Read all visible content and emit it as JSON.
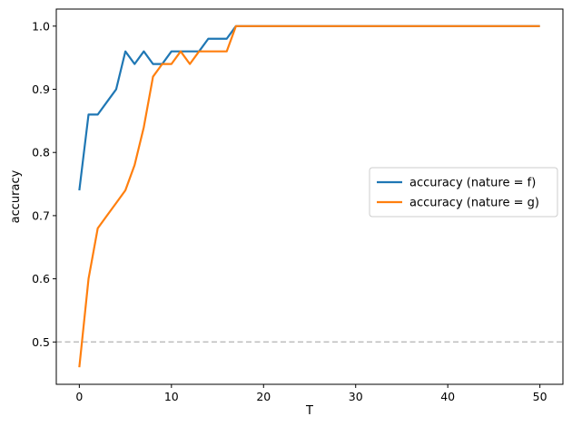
{
  "chart_data": {
    "type": "line",
    "title": "",
    "xlabel": "T",
    "ylabel": "accuracy",
    "xlim": [
      -2.5,
      52.5
    ],
    "ylim": [
      0.433,
      1.027
    ],
    "xticks": [
      0,
      10,
      20,
      30,
      40,
      50
    ],
    "yticks": [
      0.5,
      0.6,
      0.7,
      0.8,
      0.9,
      1.0
    ],
    "xtick_labels": [
      "0",
      "10",
      "20",
      "30",
      "40",
      "50"
    ],
    "ytick_labels": [
      "0.5",
      "0.6",
      "0.7",
      "0.8",
      "0.9",
      "1.0"
    ],
    "grid": false,
    "legend_position": "center-right",
    "reference_line": {
      "y": 0.5,
      "color": "#bfbfbf",
      "style": "dashed"
    },
    "series": [
      {
        "name": "accuracy (nature = f)",
        "color": "#1f77b4",
        "x": [
          0,
          1,
          2,
          3,
          4,
          5,
          6,
          7,
          8,
          9,
          10,
          11,
          12,
          13,
          14,
          15,
          16,
          17,
          18,
          19,
          20,
          21,
          22,
          23,
          24,
          25,
          26,
          27,
          28,
          29,
          30,
          31,
          32,
          33,
          34,
          35,
          36,
          37,
          38,
          39,
          40,
          41,
          42,
          43,
          44,
          45,
          46,
          47,
          48,
          49,
          50
        ],
        "y": [
          0.74,
          0.86,
          0.86,
          0.88,
          0.9,
          0.96,
          0.94,
          0.96,
          0.94,
          0.94,
          0.96,
          0.96,
          0.96,
          0.96,
          0.98,
          0.98,
          0.98,
          1.0,
          1.0,
          1.0,
          1.0,
          1.0,
          1.0,
          1.0,
          1.0,
          1.0,
          1.0,
          1.0,
          1.0,
          1.0,
          1.0,
          1.0,
          1.0,
          1.0,
          1.0,
          1.0,
          1.0,
          1.0,
          1.0,
          1.0,
          1.0,
          1.0,
          1.0,
          1.0,
          1.0,
          1.0,
          1.0,
          1.0,
          1.0,
          1.0,
          1.0
        ]
      },
      {
        "name": "accuracy (nature = g)",
        "color": "#ff7f0e",
        "x": [
          0,
          1,
          2,
          3,
          4,
          5,
          6,
          7,
          8,
          9,
          10,
          11,
          12,
          13,
          14,
          15,
          16,
          17,
          18,
          19,
          20,
          21,
          22,
          23,
          24,
          25,
          26,
          27,
          28,
          29,
          30,
          31,
          32,
          33,
          34,
          35,
          36,
          37,
          38,
          39,
          40,
          41,
          42,
          43,
          44,
          45,
          46,
          47,
          48,
          49,
          50
        ],
        "y": [
          0.46,
          0.6,
          0.68,
          0.7,
          0.72,
          0.74,
          0.78,
          0.84,
          0.92,
          0.94,
          0.94,
          0.96,
          0.94,
          0.96,
          0.96,
          0.96,
          0.96,
          1.0,
          1.0,
          1.0,
          1.0,
          1.0,
          1.0,
          1.0,
          1.0,
          1.0,
          1.0,
          1.0,
          1.0,
          1.0,
          1.0,
          1.0,
          1.0,
          1.0,
          1.0,
          1.0,
          1.0,
          1.0,
          1.0,
          1.0,
          1.0,
          1.0,
          1.0,
          1.0,
          1.0,
          1.0,
          1.0,
          1.0,
          1.0,
          1.0,
          1.0
        ]
      }
    ]
  }
}
